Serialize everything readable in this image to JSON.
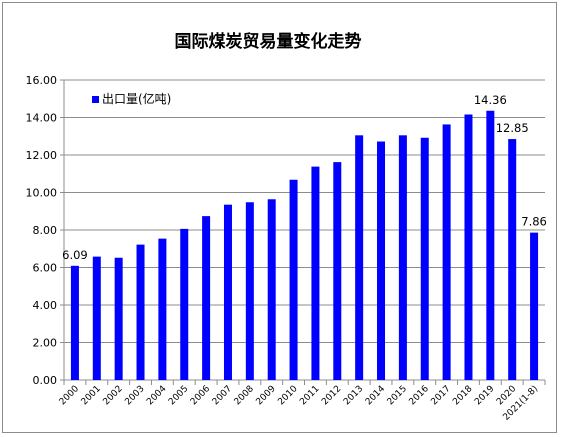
{
  "chart_data": {
    "type": "bar",
    "title": "国际煤炭贸易量变化走势",
    "xlabel": "",
    "ylabel": "",
    "ylim": [
      0,
      16
    ],
    "yticks": [
      "0.00",
      "2.00",
      "4.00",
      "6.00",
      "8.00",
      "10.00",
      "12.00",
      "14.00",
      "16.00"
    ],
    "grid": true,
    "legend_position": "top-left",
    "bar_color": "#0000ff",
    "categories": [
      "2000",
      "2001",
      "2002",
      "2003",
      "2004",
      "2005",
      "2006",
      "2007",
      "2008",
      "2009",
      "2010",
      "2011",
      "2012",
      "2013",
      "2014",
      "2015",
      "2016",
      "2017",
      "2018",
      "2019",
      "2020",
      "2021(1-8)"
    ],
    "series": [
      {
        "name": "出口量(亿吨)",
        "values": [
          6.09,
          6.58,
          6.52,
          7.22,
          7.54,
          8.06,
          8.74,
          9.35,
          9.48,
          9.64,
          10.68,
          11.38,
          11.62,
          13.05,
          12.72,
          13.05,
          12.92,
          13.63,
          14.16,
          14.36,
          12.85,
          7.86
        ]
      }
    ],
    "data_labels": [
      {
        "index": 0,
        "text": "6.09"
      },
      {
        "index": 19,
        "text": "14.36"
      },
      {
        "index": 20,
        "text": "12.85"
      },
      {
        "index": 21,
        "text": "7.86"
      }
    ]
  }
}
